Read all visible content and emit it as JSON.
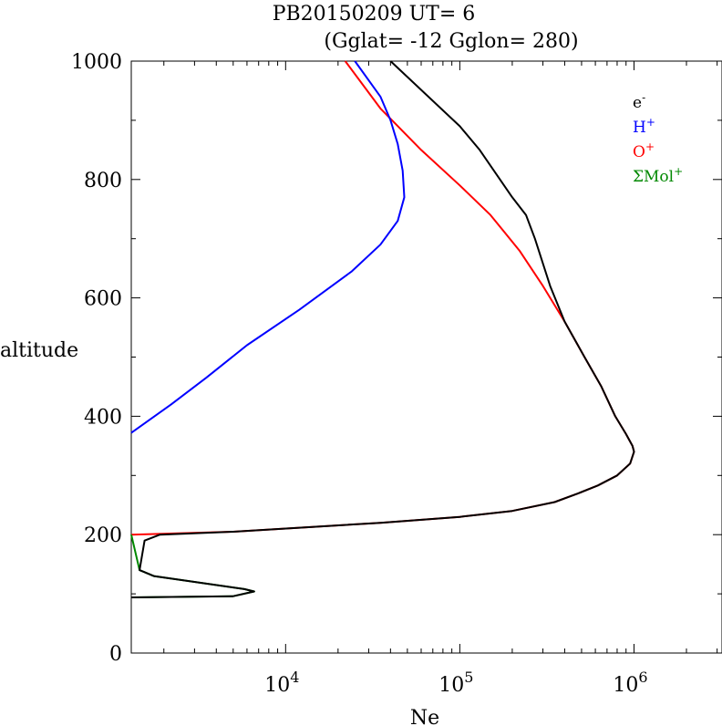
{
  "chart_data": {
    "type": "line",
    "title": "PB20150209   UT=  6",
    "subtitle": "(Gglat= -12   Gglon=  280)",
    "xlabel": "Ne",
    "ylabel": "altitude",
    "xscale": "log",
    "xlim": [
      1300,
      3200000
    ],
    "ylim": [
      0,
      1000
    ],
    "x_ticks": [
      {
        "base": "10",
        "exp": "4",
        "value": 10000
      },
      {
        "base": "10",
        "exp": "5",
        "value": 100000
      },
      {
        "base": "10",
        "exp": "6",
        "value": 1000000
      }
    ],
    "y_ticks": [
      "0",
      "200",
      "400",
      "600",
      "800",
      "1000"
    ],
    "legend_position": "top-right",
    "series": [
      {
        "name": "e",
        "sup": "-",
        "color": "#000000",
        "points": [
          [
            1300,
            94
          ],
          [
            5000,
            96
          ],
          [
            6600,
            104
          ],
          [
            5800,
            108
          ],
          [
            1750,
            130
          ],
          [
            1450,
            140
          ],
          [
            1550,
            190
          ],
          [
            1900,
            200
          ],
          [
            5000,
            205
          ],
          [
            35000,
            220
          ],
          [
            100000,
            230
          ],
          [
            200000,
            240
          ],
          [
            350000,
            255
          ],
          [
            480000,
            270
          ],
          [
            620000,
            283
          ],
          [
            800000,
            300
          ],
          [
            950000,
            320
          ],
          [
            1000000,
            340
          ],
          [
            980000,
            350
          ],
          [
            900000,
            370
          ],
          [
            780000,
            400
          ],
          [
            650000,
            450
          ],
          [
            520000,
            500
          ],
          [
            400000,
            560
          ],
          [
            330000,
            620
          ],
          [
            270000,
            700
          ],
          [
            240000,
            740
          ],
          [
            200000,
            770
          ],
          [
            130000,
            850
          ],
          [
            100000,
            890
          ],
          [
            40000,
            1000
          ]
        ]
      },
      {
        "name": "H",
        "sup": "+",
        "color": "#0000ff",
        "points": [
          [
            1300,
            372
          ],
          [
            2200,
            420
          ],
          [
            3500,
            465
          ],
          [
            6000,
            520
          ],
          [
            12000,
            580
          ],
          [
            24000,
            645
          ],
          [
            35000,
            690
          ],
          [
            44000,
            730
          ],
          [
            48000,
            770
          ],
          [
            47000,
            815
          ],
          [
            44000,
            860
          ],
          [
            40000,
            900
          ],
          [
            35000,
            940
          ],
          [
            25000,
            1000
          ]
        ]
      },
      {
        "name": "O",
        "sup": "+",
        "color": "#ff0000",
        "points": [
          [
            1300,
            200
          ],
          [
            5000,
            205
          ],
          [
            35000,
            220
          ],
          [
            100000,
            230
          ],
          [
            200000,
            240
          ],
          [
            350000,
            255
          ],
          [
            480000,
            270
          ],
          [
            620000,
            283
          ],
          [
            800000,
            300
          ],
          [
            950000,
            320
          ],
          [
            1000000,
            340
          ],
          [
            980000,
            350
          ],
          [
            900000,
            370
          ],
          [
            780000,
            400
          ],
          [
            650000,
            450
          ],
          [
            520000,
            500
          ],
          [
            400000,
            560
          ],
          [
            300000,
            620
          ],
          [
            220000,
            680
          ],
          [
            150000,
            740
          ],
          [
            100000,
            790
          ],
          [
            60000,
            850
          ],
          [
            35000,
            920
          ],
          [
            22000,
            1000
          ]
        ]
      },
      {
        "name": "ΣMol",
        "sup": "+",
        "color": "#008800",
        "points": [
          [
            1300,
            94
          ],
          [
            5000,
            96
          ],
          [
            6600,
            104
          ],
          [
            5800,
            108
          ],
          [
            1750,
            130
          ],
          [
            1450,
            140
          ],
          [
            1300,
            200
          ]
        ]
      }
    ]
  }
}
